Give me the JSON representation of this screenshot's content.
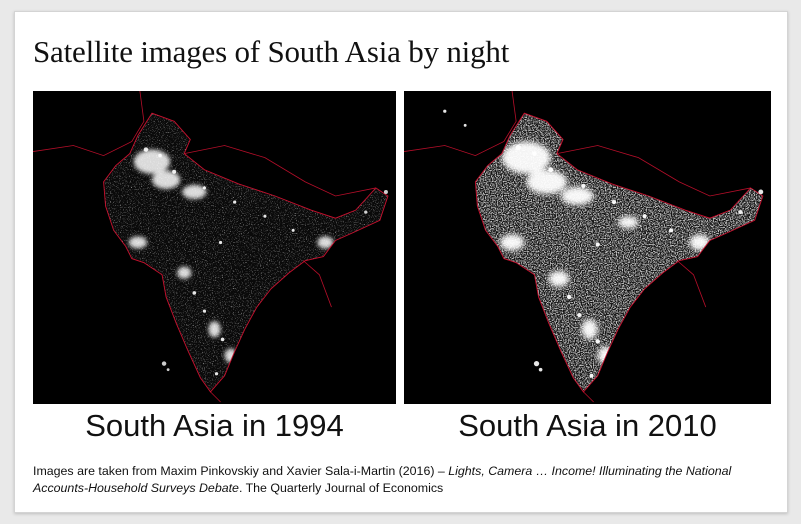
{
  "slide": {
    "title": "Satellite images of South Asia by night",
    "images": [
      {
        "caption": "South Asia in 1994",
        "alt": "Night-time satellite image of South Asia, 1994"
      },
      {
        "caption": "South Asia in 2010",
        "alt": "Night-time satellite image of South Asia, 2010"
      }
    ],
    "source": {
      "prefix": "Images are taken from Maxim Pinkovskiy and Xavier Sala-i-Martin (2016) – ",
      "paper_title": "Lights, Camera … Income! Illuminating the National Accounts-Household Surveys Debate",
      "suffix": ". The Quarterly Journal of Economics"
    }
  },
  "colors": {
    "background": "#000000",
    "lights": "#ffffff",
    "borders": "#c8102e"
  }
}
